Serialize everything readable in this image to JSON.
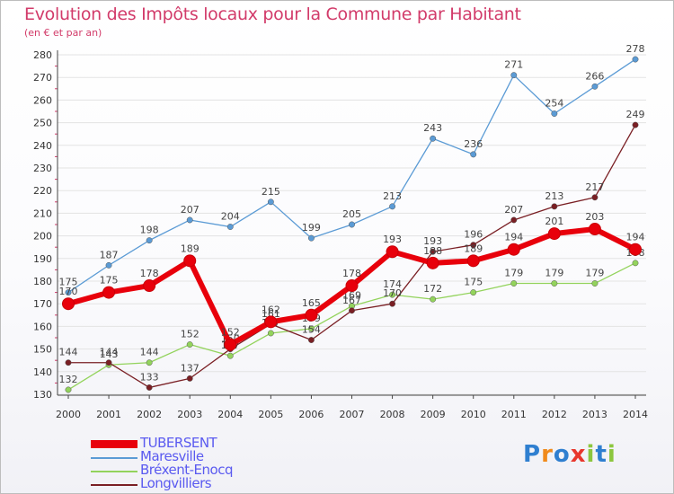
{
  "header": {
    "title": "Evolution des Impôts locaux pour la Commune par Habitant",
    "subtitle": "(en € et par an)"
  },
  "logo": {
    "text": "Proxiti",
    "letters": [
      "P",
      "r",
      "o",
      "x",
      "i",
      "t",
      "i"
    ],
    "colors": [
      "#2f7fd0",
      "#f08a1c",
      "#2f7fd0",
      "#e8372d",
      "#8cc63e",
      "#2f7fd0",
      "#8cc63e"
    ]
  },
  "chart_data": {
    "type": "line",
    "x": [
      "2000",
      "2001",
      "2002",
      "2003",
      "2004",
      "2005",
      "2006",
      "2007",
      "2008",
      "2009",
      "2010",
      "2011",
      "2012",
      "2013",
      "2014"
    ],
    "ylim": [
      130,
      280
    ],
    "yticks": [
      130,
      140,
      150,
      160,
      170,
      180,
      190,
      200,
      210,
      220,
      230,
      240,
      250,
      260,
      270,
      280
    ],
    "grid": true,
    "legend_position": "bottom-left",
    "series": [
      {
        "name": "TUBERSENT",
        "color": "#e8000b",
        "bold": true,
        "values": [
          170,
          175,
          178,
          189,
          152,
          162,
          165,
          178,
          193,
          188,
          189,
          194,
          201,
          203,
          194
        ]
      },
      {
        "name": "Maresville",
        "color": "#5b9bd5",
        "bold": false,
        "values": [
          175,
          187,
          198,
          207,
          204,
          215,
          199,
          205,
          213,
          243,
          236,
          271,
          254,
          266,
          278
        ]
      },
      {
        "name": "Bréxent-Enocq",
        "color": "#93d35c",
        "bold": false,
        "values": [
          132,
          143,
          144,
          152,
          147,
          157,
          159,
          169,
          174,
          172,
          175,
          179,
          179,
          179,
          188
        ]
      },
      {
        "name": "Longvilliers",
        "color": "#7a1f24",
        "bold": false,
        "values": [
          144,
          144,
          133,
          137,
          150,
          161,
          154,
          167,
          170,
          193,
          196,
          207,
          213,
          217,
          249
        ]
      }
    ]
  }
}
